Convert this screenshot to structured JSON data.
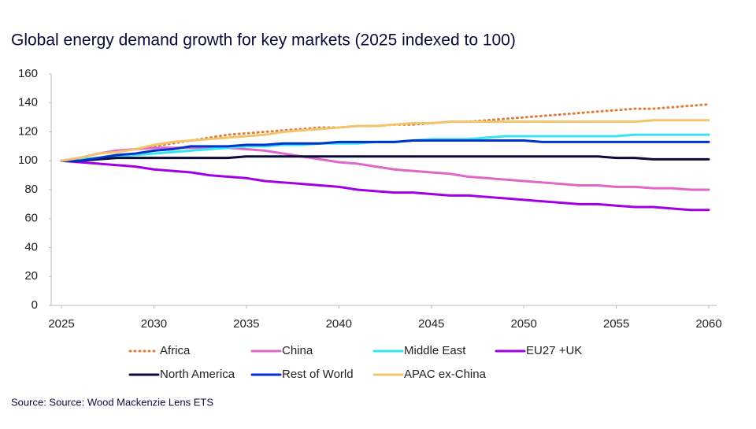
{
  "chart_data": {
    "type": "line",
    "title": "Global energy demand growth for key markets (2025 indexed to 100)",
    "source": "Source: Source: Wood Mackenzie Lens ETS",
    "x": [
      2025,
      2026,
      2027,
      2028,
      2029,
      2030,
      2031,
      2032,
      2033,
      2034,
      2035,
      2036,
      2037,
      2038,
      2039,
      2040,
      2041,
      2042,
      2043,
      2044,
      2045,
      2046,
      2047,
      2048,
      2049,
      2050,
      2051,
      2052,
      2053,
      2054,
      2055,
      2056,
      2057,
      2058,
      2059,
      2060
    ],
    "series": [
      {
        "name": "Africa",
        "color": "#e07b39",
        "dash": "dotted",
        "values": [
          100,
          102,
          105,
          107,
          108,
          110,
          112,
          114,
          116,
          118,
          119,
          120,
          121,
          122,
          123,
          123,
          124,
          124,
          125,
          125,
          126,
          127,
          127,
          128,
          129,
          130,
          131,
          132,
          133,
          134,
          135,
          136,
          136,
          137,
          138,
          139
        ]
      },
      {
        "name": "China",
        "color": "#e066c8",
        "values": [
          100,
          102,
          105,
          107,
          108,
          109,
          109,
          109,
          109,
          109,
          108,
          107,
          105,
          103,
          101,
          99,
          98,
          96,
          94,
          93,
          92,
          91,
          89,
          88,
          87,
          86,
          85,
          84,
          83,
          83,
          82,
          82,
          81,
          81,
          80,
          80
        ]
      },
      {
        "name": "Middle East",
        "color": "#33e6f0",
        "values": [
          100,
          101,
          102,
          103,
          104,
          105,
          106,
          107,
          108,
          109,
          110,
          110,
          111,
          111,
          112,
          112,
          112,
          113,
          113,
          114,
          115,
          115,
          115,
          116,
          117,
          117,
          117,
          117,
          117,
          117,
          117,
          118,
          118,
          118,
          118,
          118
        ]
      },
      {
        "name": "EU27 +UK",
        "color": "#a100e6",
        "values": [
          100,
          99,
          98,
          97,
          96,
          94,
          93,
          92,
          90,
          89,
          88,
          86,
          85,
          84,
          83,
          82,
          80,
          79,
          78,
          78,
          77,
          76,
          76,
          75,
          74,
          73,
          72,
          71,
          70,
          70,
          69,
          68,
          68,
          67,
          66,
          66
        ]
      },
      {
        "name": "North America",
        "color": "#0b0b3b",
        "values": [
          100,
          100,
          101,
          102,
          102,
          102,
          102,
          102,
          102,
          102,
          103,
          103,
          103,
          103,
          103,
          103,
          103,
          103,
          103,
          103,
          103,
          103,
          103,
          103,
          103,
          103,
          103,
          103,
          103,
          103,
          102,
          102,
          101,
          101,
          101,
          101
        ]
      },
      {
        "name": "Rest of World",
        "color": "#0033cc",
        "values": [
          100,
          100,
          102,
          104,
          105,
          107,
          108,
          110,
          110,
          110,
          111,
          111,
          112,
          112,
          112,
          113,
          113,
          113,
          113,
          114,
          114,
          114,
          114,
          114,
          114,
          114,
          113,
          113,
          113,
          113,
          113,
          113,
          113,
          113,
          113,
          113
        ]
      },
      {
        "name": "APAC ex-China",
        "color": "#f2c46d",
        "values": [
          100,
          102,
          105,
          106,
          108,
          111,
          113,
          114,
          115,
          116,
          117,
          118,
          120,
          121,
          122,
          123,
          124,
          124,
          125,
          126,
          126,
          127,
          127,
          127,
          127,
          127,
          127,
          127,
          127,
          127,
          127,
          127,
          128,
          128,
          128,
          128
        ]
      }
    ],
    "xlim": [
      2025,
      2060
    ],
    "xticks": [
      2025,
      2030,
      2035,
      2040,
      2045,
      2050,
      2055,
      2060
    ],
    "ylim": [
      0,
      160
    ],
    "yticks": [
      0,
      20,
      40,
      60,
      80,
      100,
      120,
      140,
      160
    ]
  }
}
